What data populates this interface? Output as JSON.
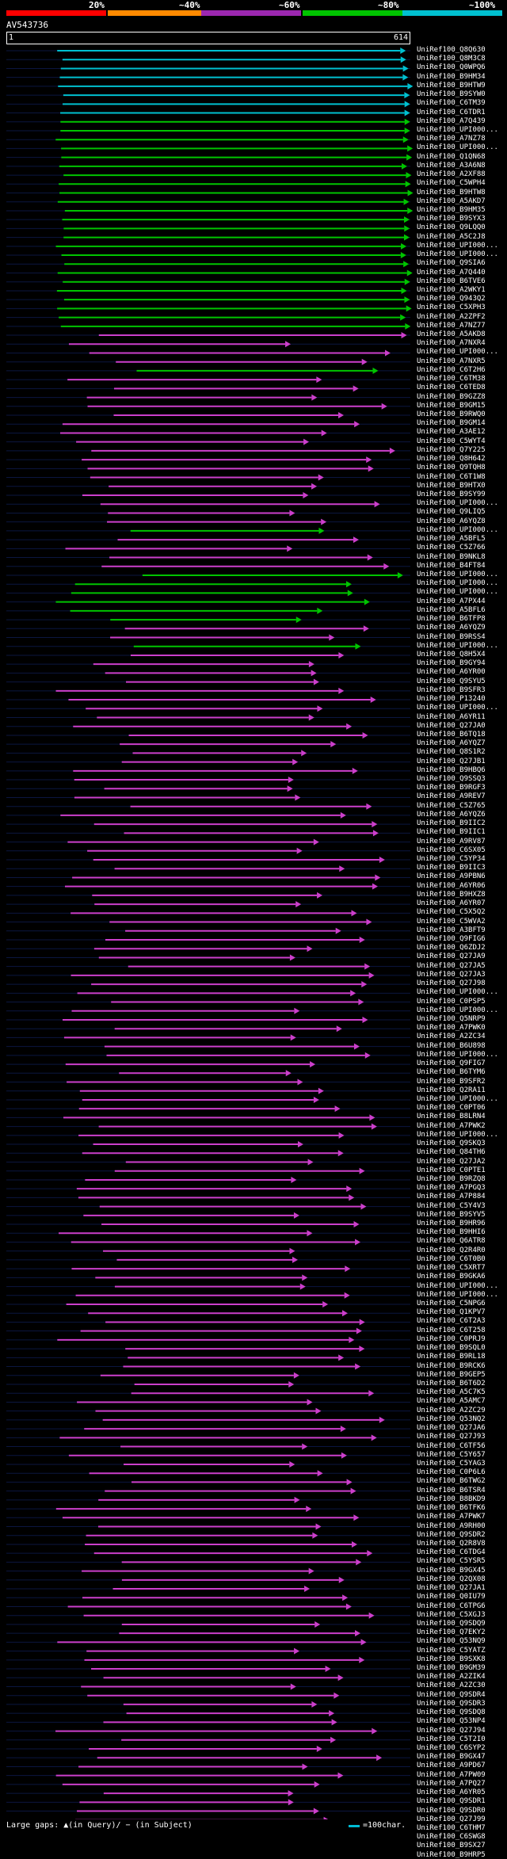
{
  "legend": [
    {
      "label": "20%",
      "color": "#ff0000"
    },
    {
      "label": "~40%",
      "color": "#ff8a00"
    },
    {
      "label": "~60%",
      "color": "#9c27b0"
    },
    {
      "label": "~80%",
      "color": "#00c400"
    },
    {
      "label": "~100%",
      "color": "#00c0d0"
    }
  ],
  "query": {
    "id": "AV543736",
    "start": "1",
    "end": "614"
  },
  "hits": [
    {
      "id": "UniRef100_Q8Q630",
      "color": "#00c0d0"
    },
    {
      "id": "UniRef100_Q8M3C8",
      "color": "#00c0d0"
    },
    {
      "id": "UniRef100_Q0WPQ6",
      "color": "#00c0d0"
    },
    {
      "id": "UniRef100_B9HM34",
      "color": "#00c0d0"
    },
    {
      "id": "UniRef100_B9HTW9",
      "color": "#00c0d0"
    },
    {
      "id": "UniRef100_B9SYW0",
      "color": "#00c0d0"
    },
    {
      "id": "UniRef100_C6TM39",
      "color": "#00c0d0"
    },
    {
      "id": "UniRef100_C6TDR1",
      "color": "#00c0d0"
    },
    {
      "id": "UniRef100_A7Q439",
      "color": "#00c400"
    },
    {
      "id": "UniRef100_UPI000...",
      "color": "#00c400"
    },
    {
      "id": "UniRef100_A7NZ78",
      "color": "#00c400"
    },
    {
      "id": "UniRef100_UPI000...",
      "color": "#00c400"
    },
    {
      "id": "UniRef100_Q1QN68",
      "color": "#00c400"
    },
    {
      "id": "UniRef100_A3A6N8",
      "color": "#00c400"
    },
    {
      "id": "UniRef100_A2XF88",
      "color": "#00c400"
    },
    {
      "id": "UniRef100_C5WPH4",
      "color": "#00c400"
    },
    {
      "id": "UniRef100_B9HTW8",
      "color": "#00c400"
    },
    {
      "id": "UniRef100_A5AKD7",
      "color": "#00c400"
    },
    {
      "id": "UniRef100_B9HM35",
      "color": "#00c400"
    },
    {
      "id": "UniRef100_B9SYX3",
      "color": "#00c400"
    },
    {
      "id": "UniRef100_Q9LQQ0",
      "color": "#00c400"
    },
    {
      "id": "UniRef100_A5C2J8",
      "color": "#00c400"
    },
    {
      "id": "UniRef100_UPI000...",
      "color": "#00c400"
    },
    {
      "id": "UniRef100_UPI000...",
      "color": "#00c400"
    },
    {
      "id": "UniRef100_Q9SIA6",
      "color": "#00c400"
    },
    {
      "id": "UniRef100_A7Q440",
      "color": "#00c400"
    },
    {
      "id": "UniRef100_B6TVE6",
      "color": "#00c400"
    },
    {
      "id": "UniRef100_A2WKY1",
      "color": "#00c400"
    },
    {
      "id": "UniRef100_Q943Q2",
      "color": "#00c400"
    },
    {
      "id": "UniRef100_C5XPH3",
      "color": "#00c400"
    },
    {
      "id": "UniRef100_A2ZPF2",
      "color": "#00c400"
    },
    {
      "id": "UniRef100_A7NZ77",
      "color": "#00c400"
    },
    {
      "id": "UniRef100_A5AKD8",
      "color": "#cc3fcc"
    },
    {
      "id": "UniRef100_A7NXR4",
      "color": "#cc3fcc"
    },
    {
      "id": "UniRef100_UPI000...",
      "color": "#cc3fcc"
    },
    {
      "id": "UniRef100_A7NXR5",
      "color": "#cc3fcc"
    },
    {
      "id": "UniRef100_C6T2H6",
      "color": "#00c400"
    },
    {
      "id": "UniRef100_C6TM38",
      "color": "#cc3fcc"
    },
    {
      "id": "UniRef100_C6TED8",
      "color": "#cc3fcc"
    },
    {
      "id": "UniRef100_B9GZZ8",
      "color": "#cc3fcc"
    },
    {
      "id": "UniRef100_B9GM15",
      "color": "#cc3fcc"
    },
    {
      "id": "UniRef100_B9RWQ0",
      "color": "#cc3fcc"
    },
    {
      "id": "UniRef100_B9GM14",
      "color": "#cc3fcc"
    },
    {
      "id": "UniRef100_A3AE12",
      "color": "#cc3fcc"
    },
    {
      "id": "UniRef100_C5WYT4",
      "color": "#cc3fcc"
    },
    {
      "id": "UniRef100_Q7Y225",
      "color": "#cc3fcc"
    },
    {
      "id": "UniRef100_Q8H642",
      "color": "#cc3fcc"
    },
    {
      "id": "UniRef100_Q9TQH8",
      "color": "#cc3fcc"
    },
    {
      "id": "UniRef100_C6T1W8",
      "color": "#cc3fcc"
    },
    {
      "id": "UniRef100_B9HTX0",
      "color": "#cc3fcc"
    },
    {
      "id": "UniRef100_B9SY99",
      "color": "#cc3fcc"
    },
    {
      "id": "UniRef100_UPI000...",
      "color": "#cc3fcc"
    },
    {
      "id": "UniRef100_Q9LIQ5",
      "color": "#cc3fcc"
    },
    {
      "id": "UniRef100_A6YQZ8",
      "color": "#cc3fcc"
    },
    {
      "id": "UniRef100_UPI000...",
      "color": "#00c400"
    },
    {
      "id": "UniRef100_A5BFL5",
      "color": "#cc3fcc"
    },
    {
      "id": "UniRef100_C5Z766",
      "color": "#cc3fcc"
    },
    {
      "id": "UniRef100_B9NKL8",
      "color": "#cc3fcc"
    },
    {
      "id": "UniRef100_B4FT84",
      "color": "#cc3fcc"
    },
    {
      "id": "UniRef100_UPI000...",
      "color": "#00c400"
    },
    {
      "id": "UniRef100_UPI000...",
      "color": "#00c400"
    },
    {
      "id": "UniRef100_UPI000...",
      "color": "#00c400"
    },
    {
      "id": "UniRef100_A7PX44",
      "color": "#00c400"
    },
    {
      "id": "UniRef100_A5BFL6",
      "color": "#00c400"
    },
    {
      "id": "UniRef100_B6TFP8",
      "color": "#00c400"
    },
    {
      "id": "UniRef100_A6YQZ9",
      "color": "#cc3fcc"
    },
    {
      "id": "UniRef100_B9RSS4",
      "color": "#cc3fcc"
    },
    {
      "id": "UniRef100_UPI000...",
      "color": "#00c400"
    },
    {
      "id": "UniRef100_Q8H5X4",
      "color": "#cc3fcc"
    },
    {
      "id": "UniRef100_B9GY94",
      "color": "#cc3fcc"
    },
    {
      "id": "UniRef100_A6YR00",
      "color": "#cc3fcc"
    },
    {
      "id": "UniRef100_Q9SYU5",
      "color": "#cc3fcc"
    },
    {
      "id": "UniRef100_B9SFR3",
      "color": "#cc3fcc"
    },
    {
      "id": "UniRef100_P13240",
      "color": "#cc3fcc"
    },
    {
      "id": "UniRef100_UPI000...",
      "color": "#cc3fcc"
    },
    {
      "id": "UniRef100_A6YR11",
      "color": "#cc3fcc"
    },
    {
      "id": "UniRef100_Q27JA0",
      "color": "#cc3fcc"
    },
    {
      "id": "UniRef100_B6TQ18",
      "color": "#cc3fcc"
    },
    {
      "id": "UniRef100_A6YQZ7",
      "color": "#cc3fcc"
    },
    {
      "id": "UniRef100_Q8S1R2",
      "color": "#cc3fcc"
    },
    {
      "id": "UniRef100_Q27JB1",
      "color": "#cc3fcc"
    },
    {
      "id": "UniRef100_B9HBQ6",
      "color": "#cc3fcc"
    },
    {
      "id": "UniRef100_Q9SSQ3",
      "color": "#cc3fcc"
    },
    {
      "id": "UniRef100_B9RGF3",
      "color": "#cc3fcc"
    },
    {
      "id": "UniRef100_A9REV7",
      "color": "#cc3fcc"
    },
    {
      "id": "UniRef100_C5Z765",
      "color": "#cc3fcc"
    },
    {
      "id": "UniRef100_A6YQZ6",
      "color": "#cc3fcc"
    },
    {
      "id": "UniRef100_B9IIC2",
      "color": "#cc3fcc"
    },
    {
      "id": "UniRef100_B9IIC1",
      "color": "#cc3fcc"
    },
    {
      "id": "UniRef100_A9RV87",
      "color": "#cc3fcc"
    },
    {
      "id": "UniRef100_C6SX05",
      "color": "#cc3fcc"
    },
    {
      "id": "UniRef100_C5YP34",
      "color": "#cc3fcc"
    },
    {
      "id": "UniRef100_B9IIC3",
      "color": "#cc3fcc"
    },
    {
      "id": "UniRef100_A9PBN6",
      "color": "#cc3fcc"
    },
    {
      "id": "UniRef100_A6YR06",
      "color": "#cc3fcc"
    },
    {
      "id": "UniRef100_B9HXZ8",
      "color": "#cc3fcc"
    },
    {
      "id": "UniRef100_A6YR07",
      "color": "#cc3fcc"
    },
    {
      "id": "UniRef100_C5X5Q2",
      "color": "#cc3fcc"
    },
    {
      "id": "UniRef100_C5WVA2",
      "color": "#cc3fcc"
    },
    {
      "id": "UniRef100_A3BFT9",
      "color": "#cc3fcc"
    },
    {
      "id": "UniRef100_Q9FIG6",
      "color": "#cc3fcc"
    },
    {
      "id": "UniRef100_Q6ZDJ2",
      "color": "#cc3fcc"
    },
    {
      "id": "UniRef100_Q27JA9",
      "color": "#cc3fcc"
    },
    {
      "id": "UniRef100_Q27JA5",
      "color": "#cc3fcc"
    },
    {
      "id": "UniRef100_Q27JA3",
      "color": "#cc3fcc"
    },
    {
      "id": "UniRef100_Q27J98",
      "color": "#cc3fcc"
    },
    {
      "id": "UniRef100_UPI000...",
      "color": "#cc3fcc"
    },
    {
      "id": "UniRef100_C0PSP5",
      "color": "#cc3fcc"
    },
    {
      "id": "UniRef100_UPI000...",
      "color": "#cc3fcc"
    },
    {
      "id": "UniRef100_Q5NRP9",
      "color": "#cc3fcc"
    },
    {
      "id": "UniRef100_A7PWK0",
      "color": "#cc3fcc"
    },
    {
      "id": "UniRef100_A2ZC34",
      "color": "#cc3fcc"
    },
    {
      "id": "UniRef100_B6U898",
      "color": "#cc3fcc"
    },
    {
      "id": "UniRef100_UPI000...",
      "color": "#cc3fcc"
    },
    {
      "id": "UniRef100_Q9FIG7",
      "color": "#cc3fcc"
    },
    {
      "id": "UniRef100_B6TYM6",
      "color": "#cc3fcc"
    },
    {
      "id": "UniRef100_B9SFR2",
      "color": "#cc3fcc"
    },
    {
      "id": "UniRef100_Q2RA11",
      "color": "#cc3fcc"
    },
    {
      "id": "UniRef100_UPI000...",
      "color": "#cc3fcc"
    },
    {
      "id": "UniRef100_C0PT06",
      "color": "#cc3fcc"
    },
    {
      "id": "UniRef100_B8LRN4",
      "color": "#cc3fcc"
    },
    {
      "id": "UniRef100_A7PWK2",
      "color": "#cc3fcc"
    },
    {
      "id": "UniRef100_UPI000...",
      "color": "#cc3fcc"
    },
    {
      "id": "UniRef100_Q9SKQ3",
      "color": "#cc3fcc"
    },
    {
      "id": "UniRef100_Q84TH6",
      "color": "#cc3fcc"
    },
    {
      "id": "UniRef100_Q27JA2",
      "color": "#cc3fcc"
    },
    {
      "id": "UniRef100_C0PTE1",
      "color": "#cc3fcc"
    },
    {
      "id": "UniRef100_B9RZQ8",
      "color": "#cc3fcc"
    },
    {
      "id": "UniRef100_A7PGQ3",
      "color": "#cc3fcc"
    },
    {
      "id": "UniRef100_A7P884",
      "color": "#cc3fcc"
    },
    {
      "id": "UniRef100_C5Y4V3",
      "color": "#cc3fcc"
    },
    {
      "id": "UniRef100_B9SYV5",
      "color": "#cc3fcc"
    },
    {
      "id": "UniRef100_B9HR96",
      "color": "#cc3fcc"
    },
    {
      "id": "UniRef100_B9HHI6",
      "color": "#cc3fcc"
    },
    {
      "id": "UniRef100_Q6ATR8",
      "color": "#cc3fcc"
    },
    {
      "id": "UniRef100_Q2R4R0",
      "color": "#cc3fcc"
    },
    {
      "id": "UniRef100_C6T0B0",
      "color": "#cc3fcc"
    },
    {
      "id": "UniRef100_C5XRT7",
      "color": "#cc3fcc"
    },
    {
      "id": "UniRef100_B9GKA6",
      "color": "#cc3fcc"
    },
    {
      "id": "UniRef100_UPI000...",
      "color": "#cc3fcc"
    },
    {
      "id": "UniRef100_UPI000...",
      "color": "#cc3fcc"
    },
    {
      "id": "UniRef100_C5NPG6",
      "color": "#cc3fcc"
    },
    {
      "id": "UniRef100_Q1KPV7",
      "color": "#cc3fcc"
    },
    {
      "id": "UniRef100_C6T2A3",
      "color": "#cc3fcc"
    },
    {
      "id": "UniRef100_C6T258",
      "color": "#cc3fcc"
    },
    {
      "id": "UniRef100_C0PRJ9",
      "color": "#cc3fcc"
    },
    {
      "id": "UniRef100_B9SQL0",
      "color": "#cc3fcc"
    },
    {
      "id": "UniRef100_B9RL18",
      "color": "#cc3fcc"
    },
    {
      "id": "UniRef100_B9RCK6",
      "color": "#cc3fcc"
    },
    {
      "id": "UniRef100_B9GEP5",
      "color": "#cc3fcc"
    },
    {
      "id": "UniRef100_B6T6D2",
      "color": "#cc3fcc"
    },
    {
      "id": "UniRef100_A5C7K5",
      "color": "#cc3fcc"
    },
    {
      "id": "UniRef100_A5AMC7",
      "color": "#cc3fcc"
    },
    {
      "id": "UniRef100_A2ZC29",
      "color": "#cc3fcc"
    },
    {
      "id": "UniRef100_Q53NQ2",
      "color": "#cc3fcc"
    },
    {
      "id": "UniRef100_Q27JA6",
      "color": "#cc3fcc"
    },
    {
      "id": "UniRef100_Q27J93",
      "color": "#cc3fcc"
    },
    {
      "id": "UniRef100_C6TF56",
      "color": "#cc3fcc"
    },
    {
      "id": "UniRef100_C5Y657",
      "color": "#cc3fcc"
    },
    {
      "id": "UniRef100_C5YAG3",
      "color": "#cc3fcc"
    },
    {
      "id": "UniRef100_C0P6L6",
      "color": "#cc3fcc"
    },
    {
      "id": "UniRef100_B6TWG2",
      "color": "#cc3fcc"
    },
    {
      "id": "UniRef100_B6TSR4",
      "color": "#cc3fcc"
    },
    {
      "id": "UniRef100_B8BKD9",
      "color": "#cc3fcc"
    },
    {
      "id": "UniRef100_B6TFK6",
      "color": "#cc3fcc"
    },
    {
      "id": "UniRef100_A7PWK7",
      "color": "#cc3fcc"
    },
    {
      "id": "UniRef100_A9RH00",
      "color": "#cc3fcc"
    },
    {
      "id": "UniRef100_Q9SDR2",
      "color": "#cc3fcc"
    },
    {
      "id": "UniRef100_Q2R8V8",
      "color": "#cc3fcc"
    },
    {
      "id": "UniRef100_C6TDG4",
      "color": "#cc3fcc"
    },
    {
      "id": "UniRef100_C5YSR5",
      "color": "#cc3fcc"
    },
    {
      "id": "UniRef100_B9GX45",
      "color": "#cc3fcc"
    },
    {
      "id": "UniRef100_Q2QX08",
      "color": "#cc3fcc"
    },
    {
      "id": "UniRef100_Q27JA1",
      "color": "#cc3fcc"
    },
    {
      "id": "UniRef100_Q0IU79",
      "color": "#cc3fcc"
    },
    {
      "id": "UniRef100_C6TPG6",
      "color": "#cc3fcc"
    },
    {
      "id": "UniRef100_C5XGJ3",
      "color": "#cc3fcc"
    },
    {
      "id": "UniRef100_Q9SDQ9",
      "color": "#cc3fcc"
    },
    {
      "id": "UniRef100_Q7EKY2",
      "color": "#cc3fcc"
    },
    {
      "id": "UniRef100_Q53NQ9",
      "color": "#cc3fcc"
    },
    {
      "id": "UniRef100_C5YATZ",
      "color": "#cc3fcc"
    },
    {
      "id": "UniRef100_B9SXK8",
      "color": "#cc3fcc"
    },
    {
      "id": "UniRef100_B9GM39",
      "color": "#cc3fcc"
    },
    {
      "id": "UniRef100_A2ZIK4",
      "color": "#cc3fcc"
    },
    {
      "id": "UniRef100_A2ZC30",
      "color": "#cc3fcc"
    },
    {
      "id": "UniRef100_Q9SDR4",
      "color": "#cc3fcc"
    },
    {
      "id": "UniRef100_Q9SDR3",
      "color": "#cc3fcc"
    },
    {
      "id": "UniRef100_Q9SDQ8",
      "color": "#cc3fcc"
    },
    {
      "id": "UniRef100_Q53NP4",
      "color": "#cc3fcc"
    },
    {
      "id": "UniRef100_Q27J94",
      "color": "#cc3fcc"
    },
    {
      "id": "UniRef100_C5T2I0",
      "color": "#cc3fcc"
    },
    {
      "id": "UniRef100_C6SYP2",
      "color": "#cc3fcc"
    },
    {
      "id": "UniRef100_B9GX47",
      "color": "#cc3fcc"
    },
    {
      "id": "UniRef100_A9PD67",
      "color": "#cc3fcc"
    },
    {
      "id": "UniRef100_A7PW09",
      "color": "#cc3fcc"
    },
    {
      "id": "UniRef100_A7PQ27",
      "color": "#cc3fcc"
    },
    {
      "id": "UniRef100_A6YR05",
      "color": "#cc3fcc"
    },
    {
      "id": "UniRef100_Q9SDR1",
      "color": "#cc3fcc"
    },
    {
      "id": "UniRef100_Q9SDR0",
      "color": "#cc3fcc"
    },
    {
      "id": "UniRef100_Q27J99",
      "color": "#cc3fcc"
    },
    {
      "id": "UniRef100_C6THM7",
      "color": "#cc3fcc"
    },
    {
      "id": "UniRef100_C6SWG8",
      "color": "#cc3fcc"
    },
    {
      "id": "UniRef100_B9SX27",
      "color": "#cc3fcc"
    },
    {
      "id": "UniRef100_B9HRP5",
      "color": "#cc3fcc"
    }
  ],
  "footer": {
    "gaps_text": "Large gaps: ▲(in Query)/ − (in Subject)",
    "scale_text": "=100char."
  }
}
